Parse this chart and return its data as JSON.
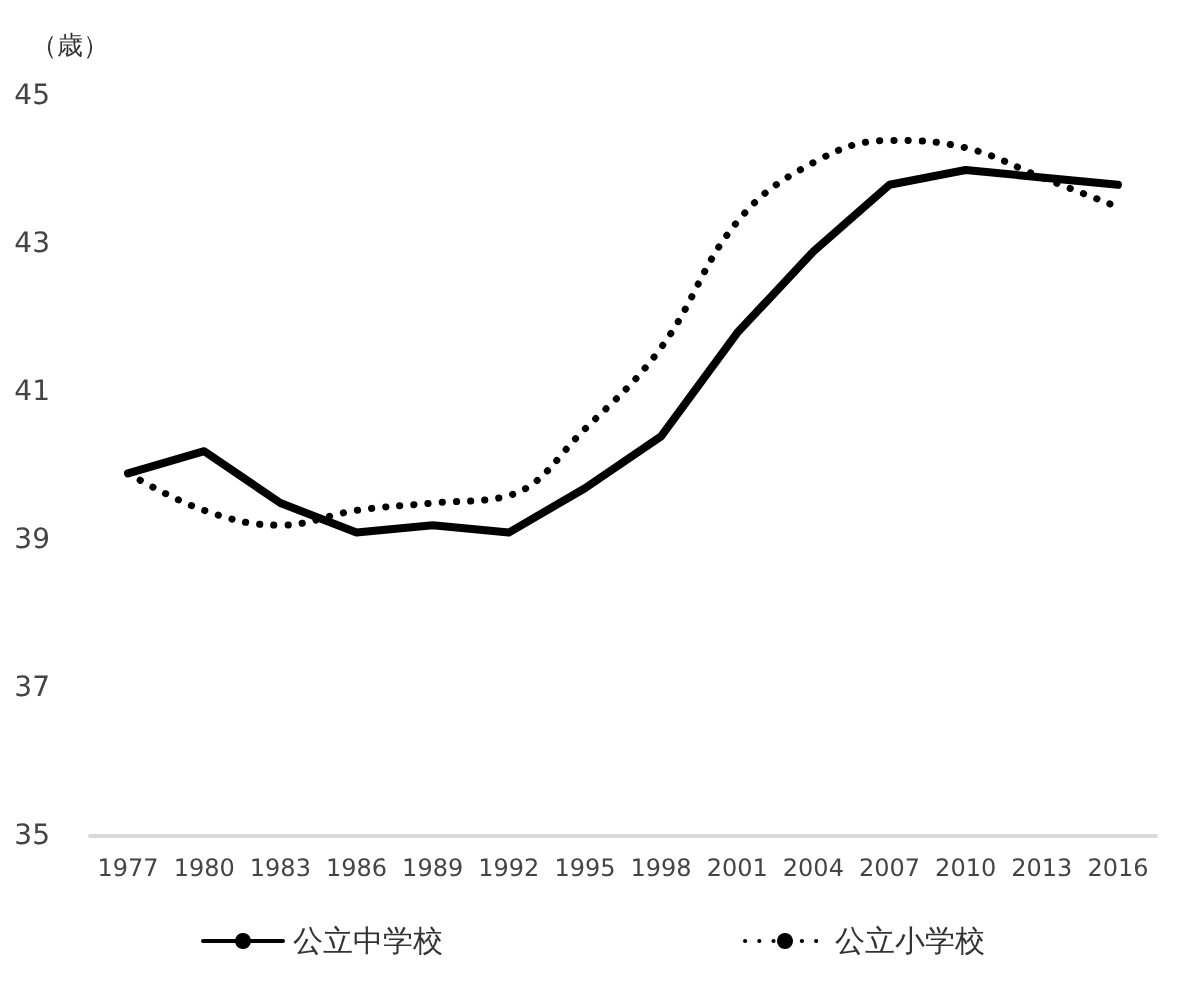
{
  "chart_data": {
    "type": "line",
    "ylabel": "（歳）",
    "categories": [
      "1977",
      "1980",
      "1983",
      "1986",
      "1989",
      "1992",
      "1995",
      "1998",
      "2001",
      "2004",
      "2007",
      "2010",
      "2013",
      "2016"
    ],
    "series": [
      {
        "name": "公立中学校",
        "color": "#000000",
        "line_style": "solid",
        "values": [
          39.9,
          40.2,
          39.5,
          39.1,
          39.2,
          39.1,
          39.7,
          40.4,
          41.8,
          42.9,
          43.8,
          44.0,
          43.9,
          43.8
        ]
      },
      {
        "name": "公立小学校",
        "color": "#000000",
        "line_style": "dotted",
        "values": [
          39.9,
          39.4,
          39.2,
          39.4,
          39.5,
          39.6,
          40.5,
          41.6,
          43.3,
          44.1,
          44.4,
          44.3,
          43.9,
          43.5
        ]
      }
    ],
    "ylim": [
      35,
      45
    ],
    "yticks": [
      35,
      37,
      39,
      41,
      43,
      45
    ],
    "grid": false,
    "legend": "bottom",
    "marker": "none"
  }
}
